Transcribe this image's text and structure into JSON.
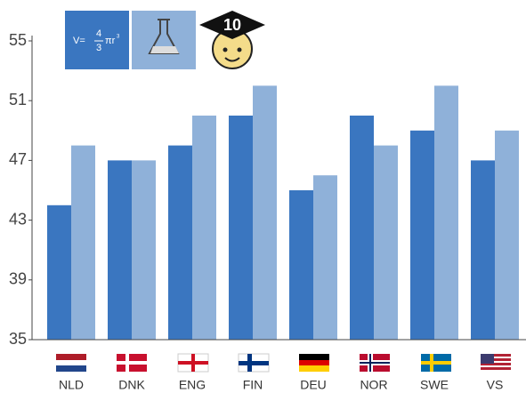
{
  "chart_data": {
    "type": "bar",
    "categories": [
      "NLD",
      "DNK",
      "ENG",
      "FIN",
      "DEU",
      "NOR",
      "SWE",
      "VS"
    ],
    "series": [
      {
        "color": "#3a76c0",
        "values": [
          44,
          47,
          48,
          50,
          45,
          50,
          49,
          47
        ]
      },
      {
        "color": "#8fb1d9",
        "values": [
          48,
          47,
          50,
          52,
          46,
          48,
          52,
          49
        ]
      }
    ],
    "ylim": [
      35,
      55
    ],
    "yticks": [
      35,
      39,
      43,
      47,
      51,
      55
    ],
    "grid": false,
    "toolbar": {
      "formula_lhs": "V=",
      "formula_num": "4",
      "formula_den": "3",
      "formula_rhs": "πr",
      "formula_exp": "3",
      "badge": "10"
    }
  }
}
